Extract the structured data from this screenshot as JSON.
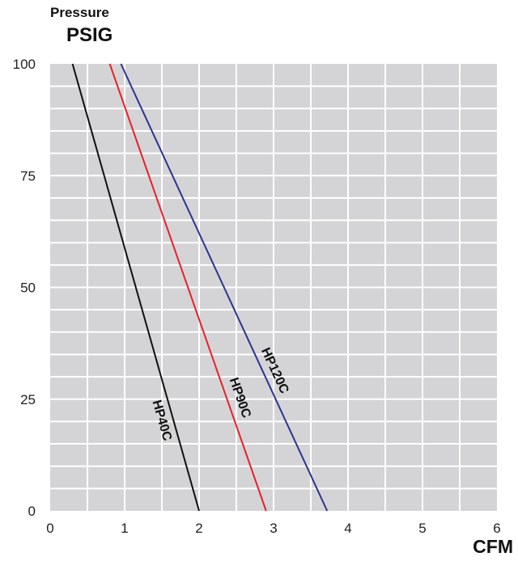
{
  "chart_data": {
    "type": "line",
    "ylabel_top": "Pressure",
    "ylabel": "PSIG",
    "xlabel": "CFM",
    "xlim": [
      0,
      6
    ],
    "ylim": [
      0,
      100
    ],
    "x_ticks": [
      0,
      1,
      2,
      3,
      4,
      5,
      6
    ],
    "y_ticks": [
      0,
      25,
      50,
      75,
      100
    ],
    "grid": true,
    "background_color": "#d4d4d6",
    "series": [
      {
        "name": "HP40C",
        "color": "#111111",
        "points": [
          [
            0.3,
            100
          ],
          [
            2.0,
            0
          ]
        ],
        "label_at": [
          1.45,
          20
        ]
      },
      {
        "name": "HP90C",
        "color": "#e8202a",
        "points": [
          [
            0.8,
            100
          ],
          [
            2.9,
            0
          ]
        ],
        "label_at": [
          2.5,
          25
        ]
      },
      {
        "name": "HP120C",
        "color": "#2b3590",
        "points": [
          [
            0.95,
            100
          ],
          [
            3.72,
            0
          ]
        ],
        "label_at": [
          2.97,
          31
        ]
      }
    ]
  }
}
